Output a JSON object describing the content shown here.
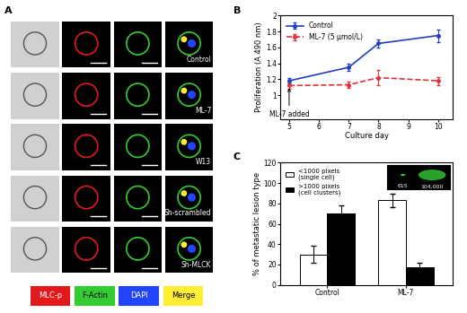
{
  "panel_a": {
    "label": "A",
    "rows": [
      "Control",
      "ML-7",
      "W13",
      "Sh-scrambled",
      "Sh-MLCK"
    ],
    "legend": [
      {
        "name": "MLC-p",
        "color": "#e31a1c"
      },
      {
        "name": "F-Actin",
        "color": "#33cc33"
      },
      {
        "name": "DAPI",
        "color": "#2244ff"
      },
      {
        "name": "Merge",
        "color": "#ffee33"
      }
    ]
  },
  "chart_data": [
    {
      "type": "line",
      "panel": "B",
      "x_label": "Culture day",
      "y_label": "Proliferation (A 490 nm)",
      "x": [
        5,
        7,
        8,
        10
      ],
      "series": [
        {
          "name": "Control",
          "color": "#1f3fbf",
          "line_style": "solid",
          "marker": "o",
          "values": [
            1.18,
            1.35,
            1.65,
            1.75
          ],
          "errors": [
            0.03,
            0.05,
            0.05,
            0.08
          ]
        },
        {
          "name": "ML-7 (5 μmol/L)",
          "color": "#e0303a",
          "line_style": "dashed",
          "marker": "o",
          "values": [
            1.12,
            1.13,
            1.22,
            1.18
          ],
          "errors": [
            0.04,
            0.04,
            0.1,
            0.05
          ]
        }
      ],
      "xlim": [
        4.7,
        10.5
      ],
      "xticks": [
        5,
        6,
        7,
        8,
        9,
        10
      ],
      "ylim": [
        0.7,
        2.0
      ],
      "yticks": [
        1,
        1.2,
        1.4,
        1.6,
        1.8,
        2
      ],
      "legend": "upper left",
      "annotations": [
        {
          "text": "ML-7 added",
          "x": 5,
          "y": 1.12
        }
      ]
    },
    {
      "type": "bar",
      "panel": "C",
      "y_label": "% of metastatic lesion type",
      "categories": [
        "Control",
        "ML-7"
      ],
      "series": [
        {
          "name": "<1000 pixels\n(single cell)",
          "color": "#ffffff",
          "values": [
            30,
            83
          ],
          "errors": [
            8,
            7
          ]
        },
        {
          "name": ">1000 pixels\n(cell clusters)",
          "color": "#000000",
          "values": [
            70,
            17
          ],
          "errors": [
            8,
            5
          ]
        }
      ],
      "ylim": [
        0,
        120
      ],
      "yticks": [
        0,
        20,
        40,
        60,
        80,
        100,
        120
      ],
      "legend": "upper left",
      "annotations": [
        {
          "text": "615"
        },
        {
          "text": "104,000"
        }
      ]
    }
  ]
}
